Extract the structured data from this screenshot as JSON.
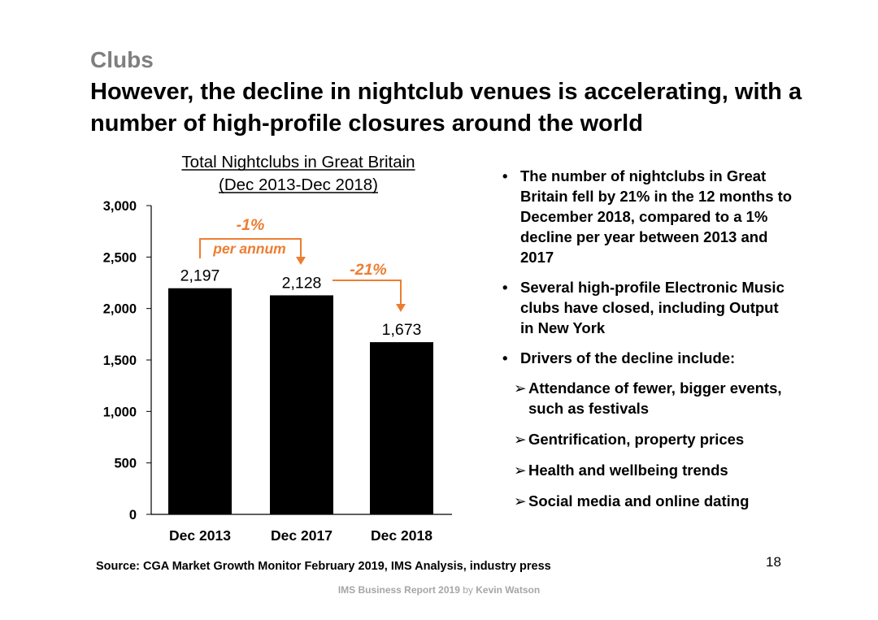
{
  "section": "Clubs",
  "headline": "However, the decline in nightclub venues is accelerating, with a number of high-profile closures around the world",
  "chart_data": {
    "type": "bar",
    "title": "Total Nightclubs in Great Britain",
    "subtitle": "(Dec 2013-Dec 2018)",
    "categories": [
      "Dec 2013",
      "Dec 2017",
      "Dec 2018"
    ],
    "values": [
      2197,
      2128,
      1673
    ],
    "data_labels": [
      "2,197",
      "2,128",
      "1,673"
    ],
    "ylim": [
      0,
      3000
    ],
    "yticks": [
      0,
      500,
      1000,
      1500,
      2000,
      2500,
      3000
    ],
    "ytick_labels": [
      "0",
      "500",
      "1,000",
      "1,500",
      "2,000",
      "2,500",
      "3,000"
    ],
    "xlabel": "",
    "ylabel": "",
    "grid": false,
    "bar_color": "#000000",
    "annotations": [
      {
        "from": "Dec 2013",
        "to": "Dec 2017",
        "label": "-1%",
        "sublabel": "per annum"
      },
      {
        "from": "Dec 2017",
        "to": "Dec 2018",
        "label": "-21%",
        "sublabel": ""
      }
    ],
    "annotation_color": "#ed7d31"
  },
  "bullets": [
    {
      "level": 1,
      "marker": "•",
      "text": "The number of nightclubs in Great Britain fell by 21% in the 12 months to December 2018, compared to a 1% decline per year between 2013 and 2017"
    },
    {
      "level": 1,
      "marker": "•",
      "text": "Several high-profile Electronic Music clubs have closed, including Output in New York"
    },
    {
      "level": 1,
      "marker": "•",
      "text": "Drivers of the decline include:"
    },
    {
      "level": 2,
      "marker": "➢",
      "text": "Attendance of fewer, bigger events, such as festivals"
    },
    {
      "level": 2,
      "marker": "➢",
      "text": "Gentrification, property prices"
    },
    {
      "level": 2,
      "marker": "➢",
      "text": "Health and wellbeing trends"
    },
    {
      "level": 2,
      "marker": "➢",
      "text": "Social media and online dating"
    }
  ],
  "source": "Source: CGA Market Growth Monitor February 2019, IMS Analysis, industry press",
  "page_number": "18",
  "footer": {
    "title": "IMS Business Report 2019",
    "by": "by",
    "author": "Kevin Watson"
  }
}
